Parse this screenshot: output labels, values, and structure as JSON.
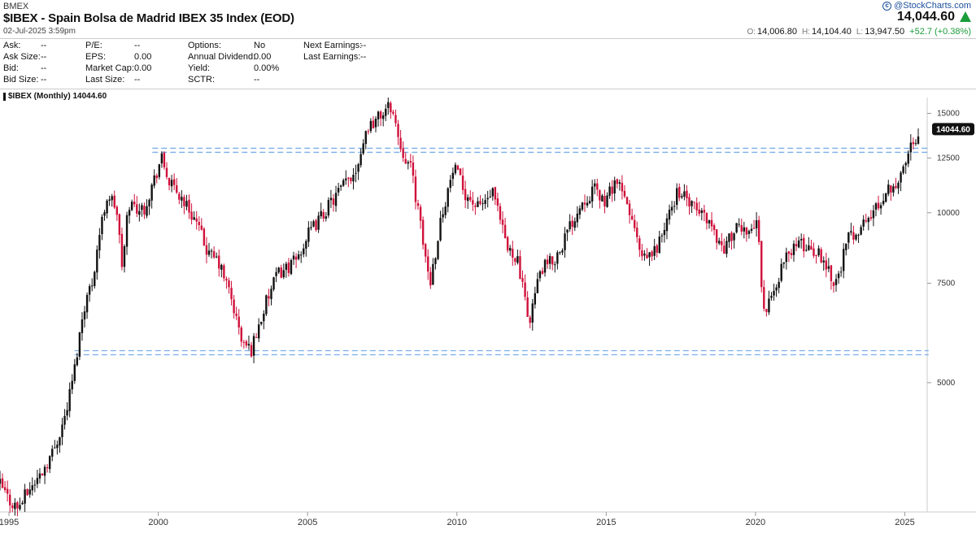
{
  "header": {
    "exchange": "BMEX",
    "title": "$IBEX - Spain Bolsa de Madrid IBEX 35 Index (EOD)",
    "timestamp": "02-Jul-2025 3:59pm",
    "brand": "@StockCharts.com",
    "last_price": "14,044.60",
    "ohlc": {
      "open_label": "O:",
      "open": "14,006.80",
      "high_label": "H:",
      "high": "14,104.40",
      "low_label": "L:",
      "low": "13,947.50",
      "change": "+52.7 (+0.38%)"
    }
  },
  "stats": [
    {
      "label": "Ask:",
      "value": "--"
    },
    {
      "label": "Ask Size:",
      "value": "--"
    },
    {
      "label": "Bid:",
      "value": "--"
    },
    {
      "label": "Bid Size:",
      "value": "--"
    },
    {
      "label": "P/E:",
      "value": "--"
    },
    {
      "label": "EPS:",
      "value": "0.00"
    },
    {
      "label": "Market Cap:",
      "value": "0.00"
    },
    {
      "label": "Last Size:",
      "value": "--"
    },
    {
      "label": "Options:",
      "value": "No"
    },
    {
      "label": "Annual Dividend:",
      "value": "0.00"
    },
    {
      "label": "Yield:",
      "value": "0.00%"
    },
    {
      "label": "SCTR:",
      "value": "--"
    },
    {
      "label": "Next Earnings:",
      "value": "--"
    },
    {
      "label": "Last Earnings:",
      "value": "--"
    }
  ],
  "colors": {
    "up": "#111111",
    "down": "#d0103a",
    "line": "#7aaee8",
    "tag": "#111111",
    "change": "#1b9c3b"
  },
  "chart_data": {
    "type": "candlestick",
    "series_label": "$IBEX (Monthly) 14044.60",
    "scale": "log",
    "ylim": [
      2950,
      16000
    ],
    "y_ticks": [
      5000,
      7500,
      10000,
      12500,
      15000
    ],
    "x_ticks": [
      "1995",
      "2000",
      "2005",
      "2010",
      "2015",
      "2020",
      "2025"
    ],
    "x_range": [
      1994.7,
      2025.75
    ],
    "last_value": "14044.60",
    "horizontal_lines": [
      {
        "value": 12900,
        "from": 1999.8,
        "to": 2025.8
      },
      {
        "value": 5650,
        "from": 1997.2,
        "to": 2025.8
      }
    ],
    "closes": [
      {
        "t": 1994.7,
        "v": 3300
      },
      {
        "t": 1995.0,
        "v": 3100
      },
      {
        "t": 1995.3,
        "v": 3000
      },
      {
        "t": 1995.7,
        "v": 3250
      },
      {
        "t": 1996.0,
        "v": 3400
      },
      {
        "t": 1996.5,
        "v": 3800
      },
      {
        "t": 1996.9,
        "v": 4400
      },
      {
        "t": 1997.2,
        "v": 5300
      },
      {
        "t": 1997.5,
        "v": 6800
      },
      {
        "t": 1997.8,
        "v": 7600
      },
      {
        "t": 1998.0,
        "v": 9000
      },
      {
        "t": 1998.3,
        "v": 10800
      },
      {
        "t": 1998.6,
        "v": 10200
      },
      {
        "t": 1998.8,
        "v": 7900
      },
      {
        "t": 1999.0,
        "v": 10400
      },
      {
        "t": 1999.5,
        "v": 10100
      },
      {
        "t": 1999.9,
        "v": 11600
      },
      {
        "t": 2000.1,
        "v": 12500
      },
      {
        "t": 2000.4,
        "v": 11200
      },
      {
        "t": 2000.8,
        "v": 10600
      },
      {
        "t": 2001.2,
        "v": 9800
      },
      {
        "t": 2001.7,
        "v": 8400
      },
      {
        "t": 2002.0,
        "v": 8200
      },
      {
        "t": 2002.4,
        "v": 7200
      },
      {
        "t": 2002.8,
        "v": 5900
      },
      {
        "t": 2003.1,
        "v": 5700
      },
      {
        "t": 2003.6,
        "v": 6900
      },
      {
        "t": 2004.0,
        "v": 7800
      },
      {
        "t": 2004.6,
        "v": 8200
      },
      {
        "t": 2005.0,
        "v": 9100
      },
      {
        "t": 2005.6,
        "v": 10100
      },
      {
        "t": 2006.0,
        "v": 10800
      },
      {
        "t": 2006.6,
        "v": 11900
      },
      {
        "t": 2007.0,
        "v": 14200
      },
      {
        "t": 2007.4,
        "v": 14800
      },
      {
        "t": 2007.8,
        "v": 15500
      },
      {
        "t": 2008.1,
        "v": 13200
      },
      {
        "t": 2008.5,
        "v": 11800
      },
      {
        "t": 2008.8,
        "v": 9300
      },
      {
        "t": 2009.1,
        "v": 7500
      },
      {
        "t": 2009.5,
        "v": 10000
      },
      {
        "t": 2009.9,
        "v": 12000
      },
      {
        "t": 2010.3,
        "v": 10800
      },
      {
        "t": 2010.7,
        "v": 10200
      },
      {
        "t": 2011.2,
        "v": 10800
      },
      {
        "t": 2011.7,
        "v": 8600
      },
      {
        "t": 2012.0,
        "v": 8400
      },
      {
        "t": 2012.4,
        "v": 6400
      },
      {
        "t": 2012.8,
        "v": 7900
      },
      {
        "t": 2013.3,
        "v": 8300
      },
      {
        "t": 2013.8,
        "v": 9500
      },
      {
        "t": 2014.2,
        "v": 10500
      },
      {
        "t": 2014.6,
        "v": 11000
      },
      {
        "t": 2015.0,
        "v": 10400
      },
      {
        "t": 2015.3,
        "v": 11500
      },
      {
        "t": 2015.8,
        "v": 10000
      },
      {
        "t": 2016.2,
        "v": 8200
      },
      {
        "t": 2016.6,
        "v": 8500
      },
      {
        "t": 2017.0,
        "v": 9500
      },
      {
        "t": 2017.4,
        "v": 11000
      },
      {
        "t": 2017.9,
        "v": 10200
      },
      {
        "t": 2018.4,
        "v": 9800
      },
      {
        "t": 2018.9,
        "v": 8600
      },
      {
        "t": 2019.3,
        "v": 9300
      },
      {
        "t": 2019.8,
        "v": 9400
      },
      {
        "t": 2020.1,
        "v": 9500
      },
      {
        "t": 2020.25,
        "v": 6600
      },
      {
        "t": 2020.6,
        "v": 7200
      },
      {
        "t": 2020.9,
        "v": 8100
      },
      {
        "t": 2021.3,
        "v": 8800
      },
      {
        "t": 2021.8,
        "v": 8700
      },
      {
        "t": 2022.2,
        "v": 8400
      },
      {
        "t": 2022.7,
        "v": 7500
      },
      {
        "t": 2023.1,
        "v": 9000
      },
      {
        "t": 2023.6,
        "v": 9500
      },
      {
        "t": 2024.0,
        "v": 10100
      },
      {
        "t": 2024.4,
        "v": 11000
      },
      {
        "t": 2024.9,
        "v": 11600
      },
      {
        "t": 2025.2,
        "v": 13200
      },
      {
        "t": 2025.5,
        "v": 14044.6
      }
    ]
  }
}
